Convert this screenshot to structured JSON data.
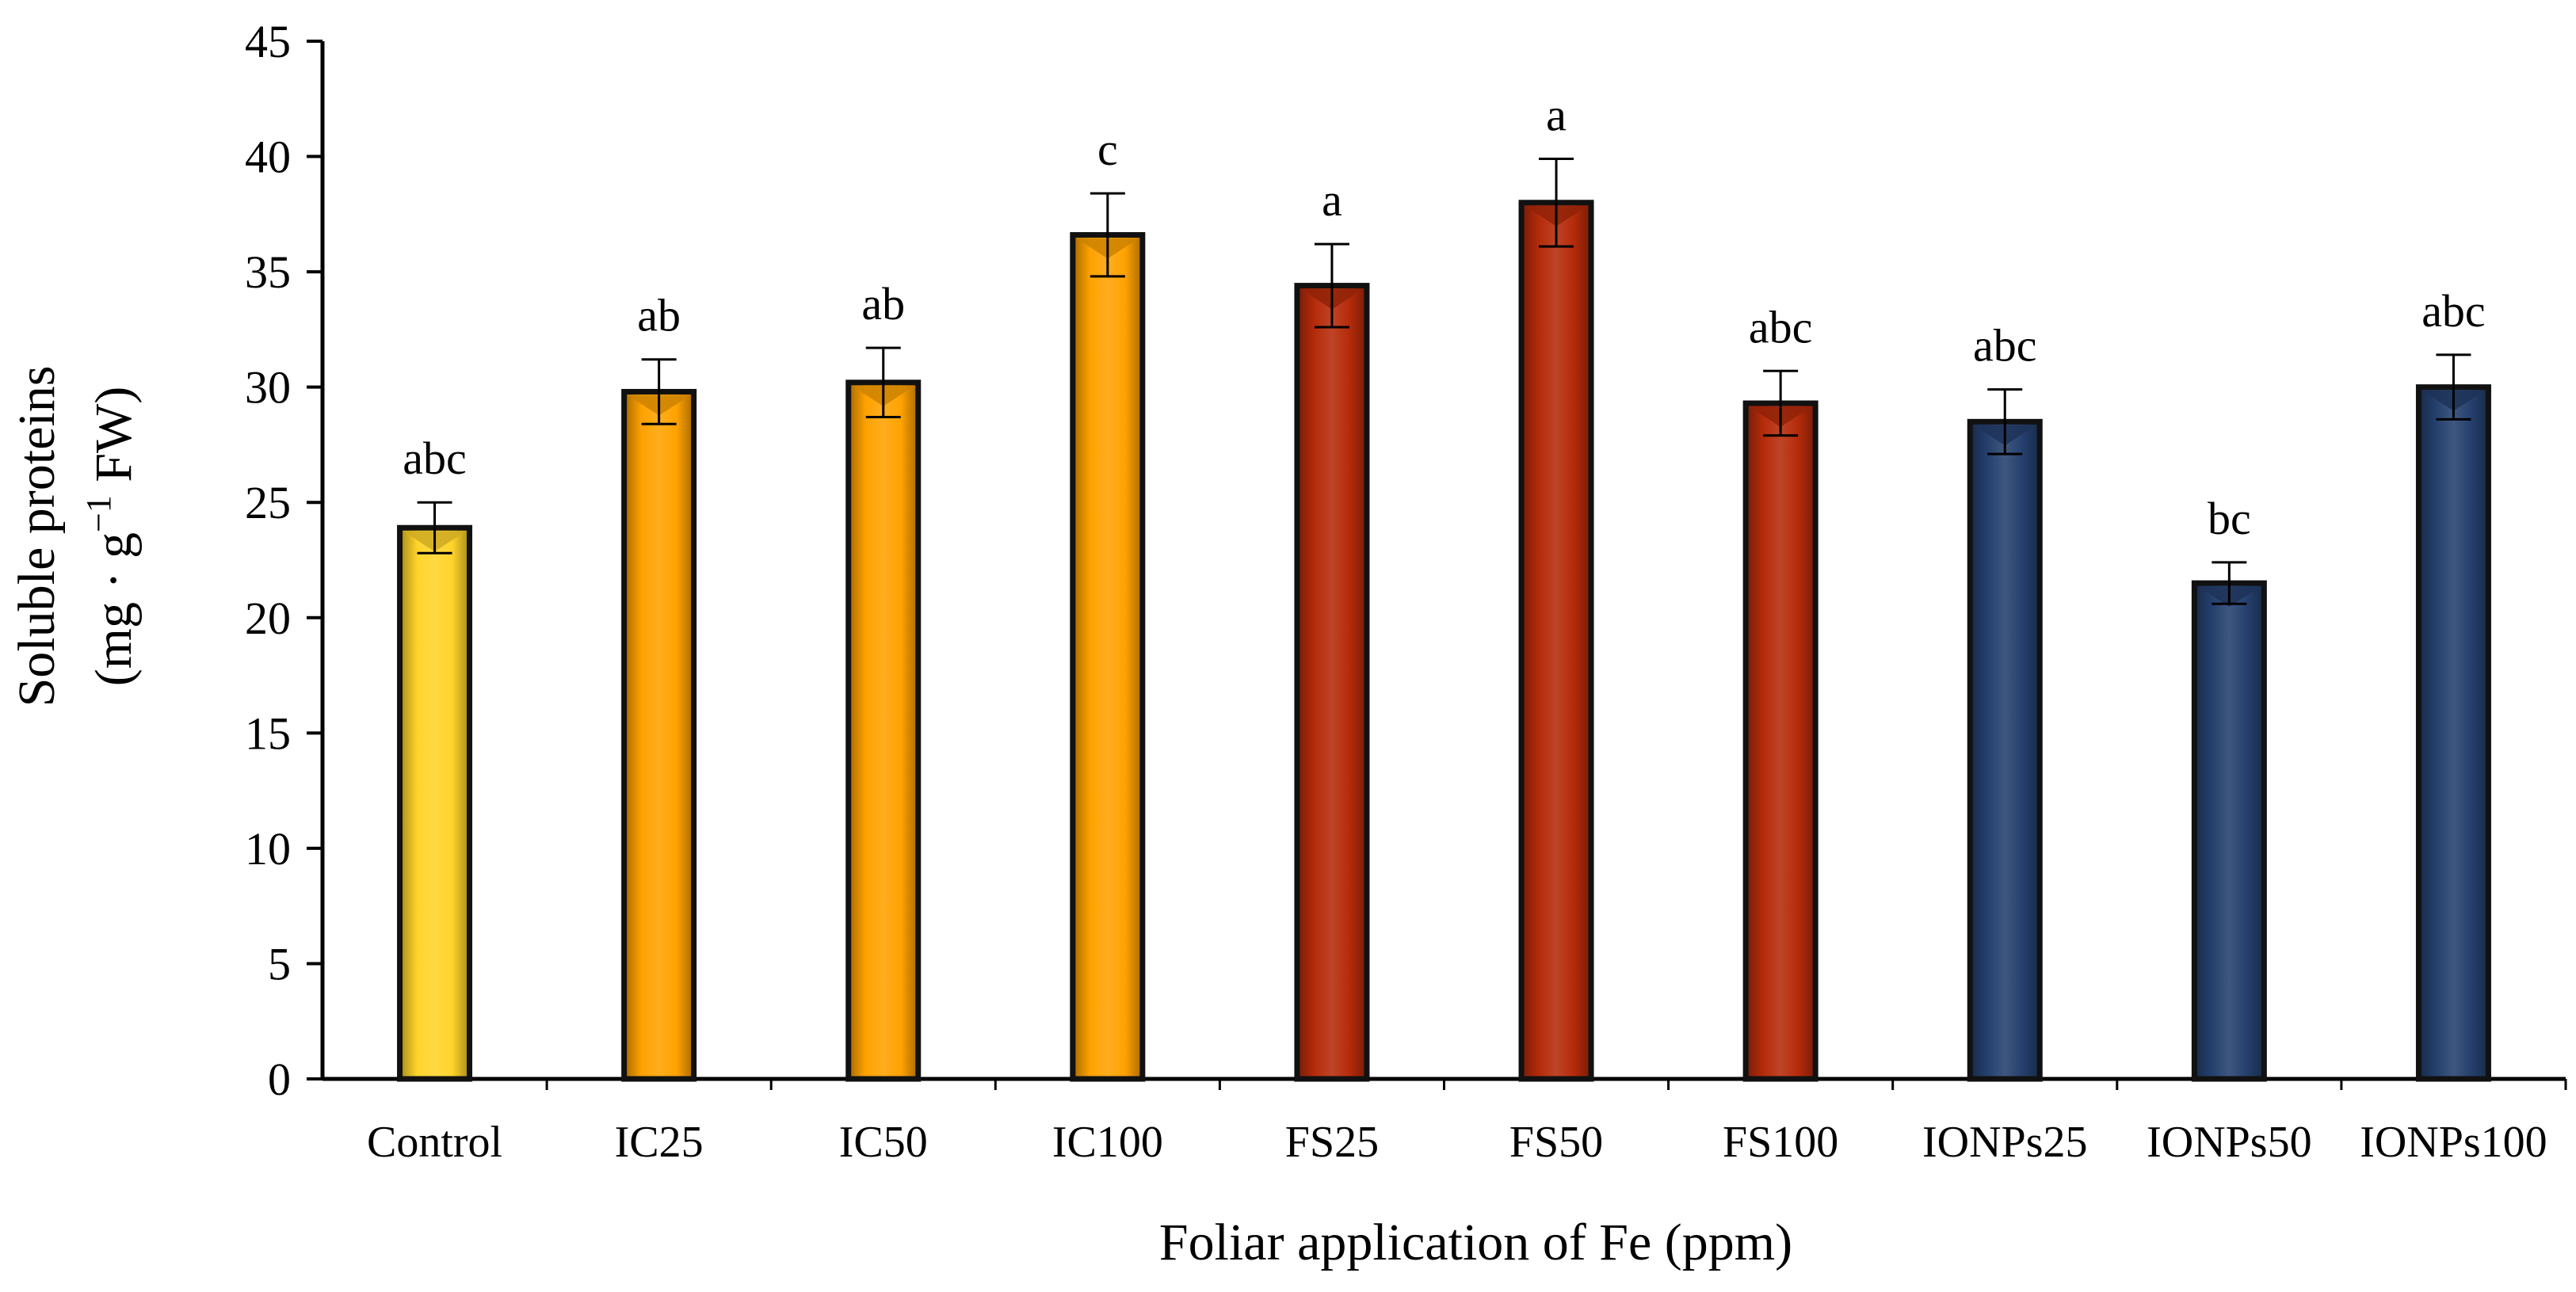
{
  "chart_data": {
    "type": "bar",
    "title": "",
    "xlabel": "Foliar application of Fe (ppm)",
    "ylabel_line1": "Soluble proteins",
    "ylabel_line2_prefix": "(mg · g",
    "ylabel_line2_sup": "−1",
    "ylabel_line2_suffix": " FW)",
    "ylim": [
      0,
      45
    ],
    "yticks": [
      0,
      5,
      10,
      15,
      20,
      25,
      30,
      35,
      40,
      45
    ],
    "grid": false,
    "legend": "none",
    "categories": [
      "Control",
      "IC25",
      "IC50",
      "IC100",
      "FS25",
      "FS50",
      "FS100",
      "IONPs25",
      "IONPs50",
      "IONPs100"
    ],
    "values": [
      23.9,
      29.8,
      30.2,
      36.6,
      34.4,
      38.0,
      29.3,
      28.5,
      21.5,
      30.0
    ],
    "errors": [
      1.1,
      1.4,
      1.5,
      1.8,
      1.8,
      1.9,
      1.4,
      1.4,
      0.9,
      1.4
    ],
    "significance": [
      "abc",
      "ab",
      "ab",
      "c",
      "a",
      "a",
      "abc",
      "abc",
      "bc",
      "abc"
    ],
    "colors": [
      "#FFD42A",
      "#FFA200",
      "#FFA200",
      "#FFA200",
      "#B52B0A",
      "#B52B0A",
      "#B52B0A",
      "#25406E",
      "#25406E",
      "#25406E"
    ]
  }
}
